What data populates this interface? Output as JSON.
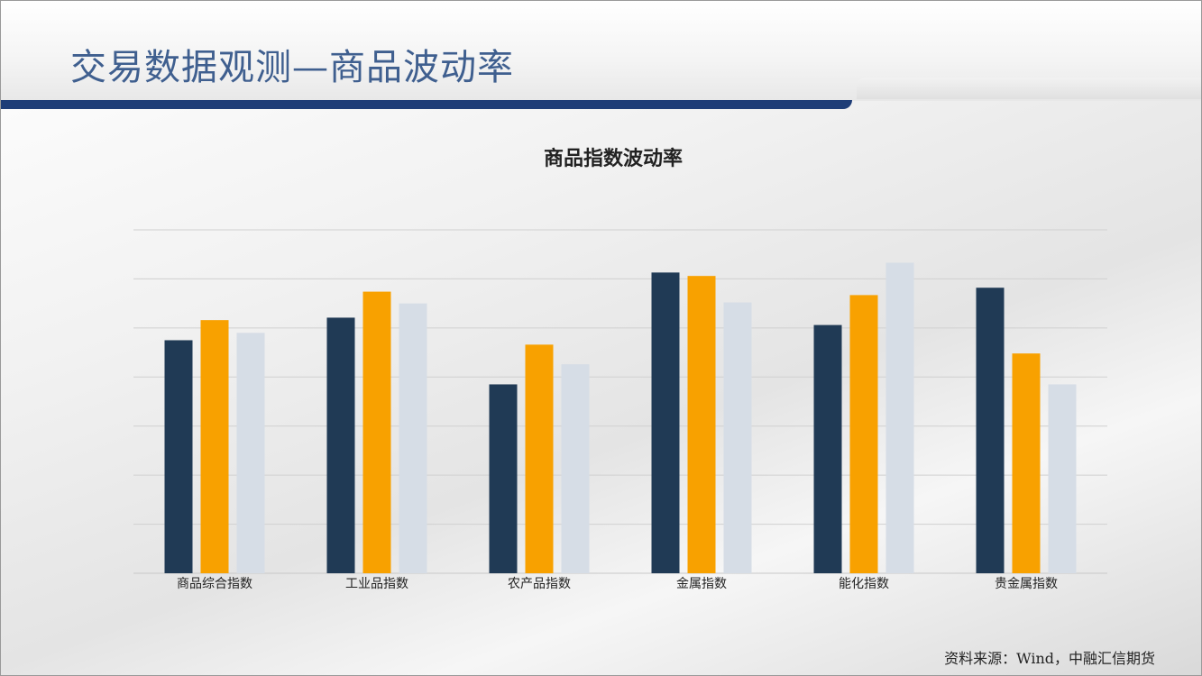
{
  "page": {
    "title": "交易数据观测—商品波动率",
    "source": "资料来源：Wind，中融汇信期货"
  },
  "colors": {
    "title_bar": "#1e3d77",
    "series": [
      "#203a55",
      "#f8a100",
      "#d6dde6"
    ]
  },
  "chart_data": {
    "type": "bar",
    "title": "商品指数波动率",
    "categories": [
      "商品综合指数",
      "工业品指数",
      "农产品指数",
      "金属指数",
      "能化指数",
      "贵金属指数"
    ],
    "series": [
      {
        "values": [
          4.75,
          5.21,
          3.85,
          6.13,
          5.06,
          5.82
        ]
      },
      {
        "values": [
          5.16,
          5.74,
          4.66,
          6.06,
          5.67,
          4.48
        ]
      },
      {
        "values": [
          4.9,
          5.5,
          4.26,
          5.52,
          6.33,
          3.85
        ]
      }
    ],
    "xlabel": "",
    "ylabel": "",
    "ylim": [
      0,
      7
    ],
    "y_tick_labels_shown": false,
    "grid": true,
    "legend": "none"
  }
}
